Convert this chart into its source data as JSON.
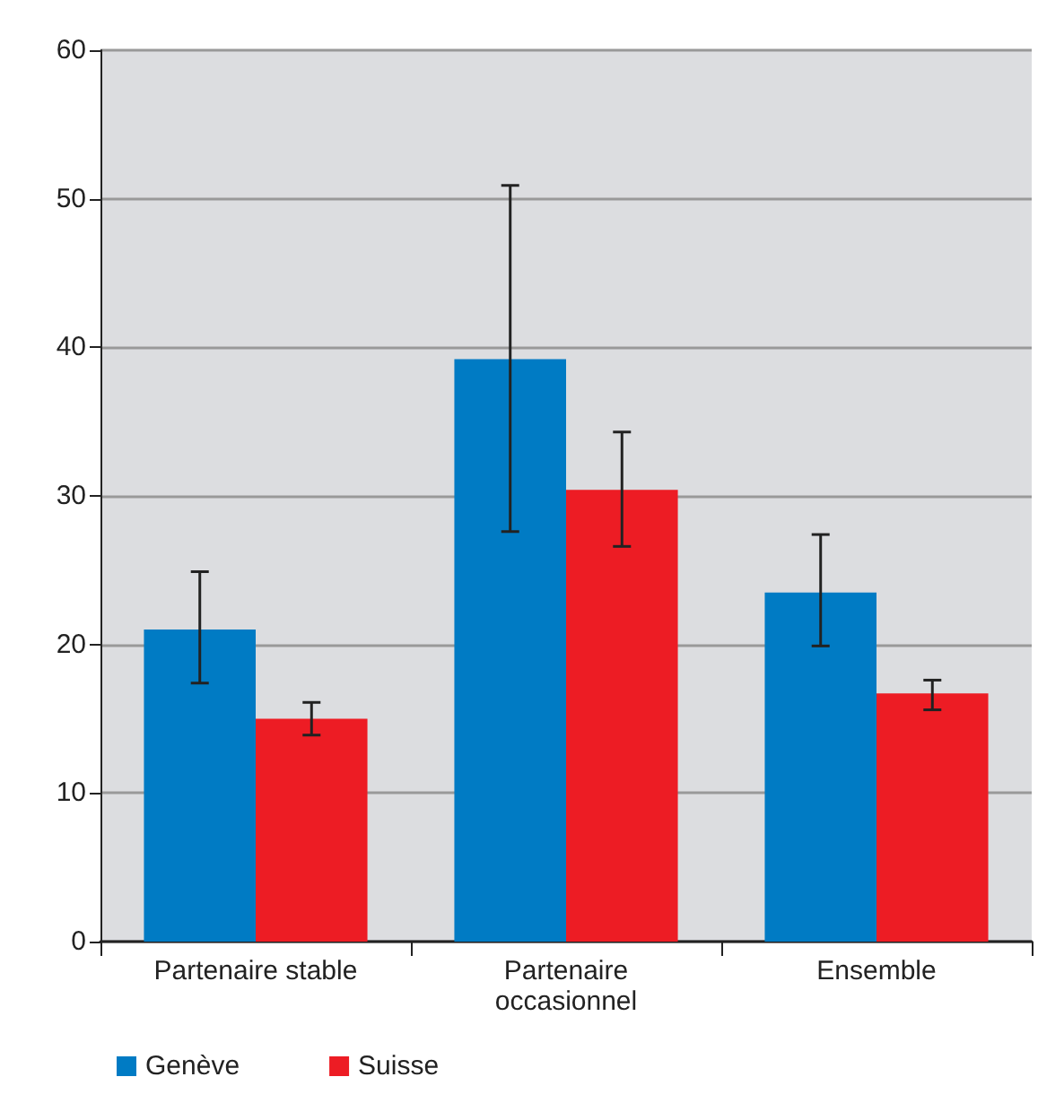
{
  "chart_data": {
    "type": "bar",
    "categories": [
      "Partenaire stable",
      "Partenaire\noccasionnel",
      "Ensemble"
    ],
    "series": [
      {
        "name": "Genève",
        "color": "#007bc4",
        "values": [
          21.0,
          39.2,
          23.5
        ],
        "errors": [
          [
            17.4,
            24.9
          ],
          [
            27.6,
            50.9
          ],
          [
            19.9,
            27.4
          ]
        ]
      },
      {
        "name": "Suisse",
        "color": "#ed1c24",
        "values": [
          15.0,
          30.4,
          16.7
        ],
        "errors": [
          [
            13.9,
            16.1
          ],
          [
            26.6,
            34.3
          ],
          [
            15.6,
            17.6
          ]
        ]
      }
    ],
    "ylim": [
      0,
      60
    ],
    "yticks": [
      0,
      10,
      20,
      30,
      40,
      50,
      60
    ],
    "grid": "y",
    "legend": "bottom left"
  }
}
